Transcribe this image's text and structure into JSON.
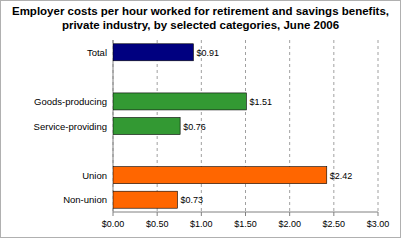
{
  "chart_data": {
    "type": "bar",
    "orientation": "horizontal",
    "title": "Employer costs per hour worked for retirement and savings benefits, private industry, by selected categories, June 2006",
    "categories": [
      "Total",
      null,
      "Goods-producing",
      "Service-providing",
      null,
      "Union",
      "Non-union"
    ],
    "values": [
      0.91,
      null,
      1.51,
      0.76,
      null,
      2.42,
      0.73
    ],
    "value_labels": [
      "$0.91",
      null,
      "$1.51",
      "$0.76",
      null,
      "$2.42",
      "$0.73"
    ],
    "colors": [
      "#000080",
      null,
      "#339933",
      "#339933",
      null,
      "#ff6600",
      "#ff6600"
    ],
    "xlim": [
      0,
      3
    ],
    "xticks": [
      {
        "value": 0,
        "label": "$0.00"
      },
      {
        "value": 0.5,
        "label": "$0.50"
      },
      {
        "value": 1,
        "label": "$1.00"
      },
      {
        "value": 1.5,
        "label": "$1.50"
      },
      {
        "value": 2,
        "label": "$2.00"
      },
      {
        "value": 2.5,
        "label": "$2.50"
      },
      {
        "value": 3,
        "label": "$3.00"
      }
    ],
    "grid": true,
    "data_labels": true
  }
}
